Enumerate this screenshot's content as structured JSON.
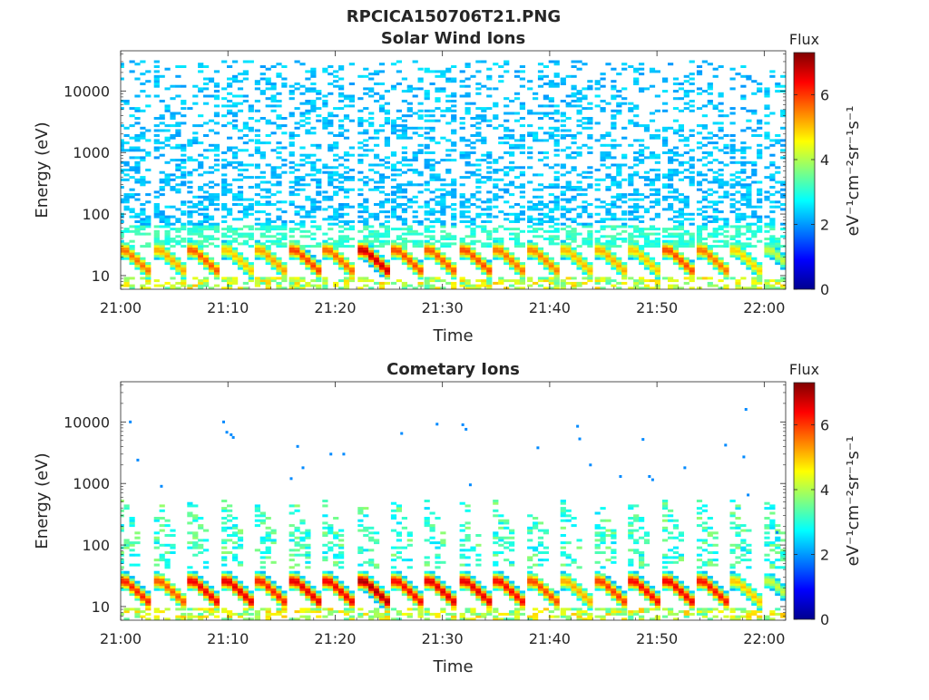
{
  "chart_data": {
    "type": "heatmap",
    "figure_title": "RPCICA150706T21.PNG",
    "colormap": [
      "#00008f",
      "#0000ff",
      "#0080ff",
      "#00ffff",
      "#80ff80",
      "#ffff00",
      "#ff8000",
      "#ff0000",
      "#800000"
    ],
    "panels": [
      {
        "title": "Solar Wind Ions",
        "xlabel": "Time",
        "ylabel": "Energy (eV)",
        "yscale": "log",
        "ylim": [
          6,
          45000
        ],
        "xlim": [
          0,
          62
        ],
        "xticks": [
          0,
          10,
          20,
          30,
          40,
          50,
          60
        ],
        "xtick_labels": [
          "21:00",
          "21:10",
          "21:20",
          "21:30",
          "21:40",
          "21:50",
          "22:00"
        ],
        "yticks": [
          10,
          100,
          1000,
          10000
        ],
        "ytick_labels": [
          "10",
          "100",
          "1000",
          "10000"
        ],
        "colorbar_title": "Flux",
        "colorbar_label": "eV⁻¹cm⁻²sr⁻¹s⁻¹",
        "clim": [
          0,
          7.3
        ],
        "colorbar_ticks": [
          0,
          2,
          4,
          6
        ],
        "colorbar_tick_labels": [
          "0",
          "2",
          "4",
          "6"
        ],
        "sweep_minutes": [
          0.2,
          3.5,
          6.6,
          9.8,
          12.9,
          16.1,
          19.2,
          22.5,
          25.6,
          28.7,
          32.0,
          35.1,
          38.3,
          41.4,
          44.6,
          47.7,
          50.9,
          54.1,
          57.2,
          60.4
        ],
        "sweep_peak_flux": [
          5.6,
          5.2,
          5.8,
          5.0,
          5.3,
          6.0,
          5.7,
          6.8,
          5.9,
          5.8,
          5.9,
          5.6,
          5.5,
          5.1,
          5.2,
          5.0,
          5.9,
          5.6,
          4.9,
          4.2
        ],
        "peak_energy_eV": 25,
        "high_energy_flux": 2.0,
        "high_energy_max_eV": 30000
      },
      {
        "title": "Cometary Ions",
        "xlabel": "Time",
        "ylabel": "Energy (eV)",
        "yscale": "log",
        "ylim": [
          6,
          45000
        ],
        "xlim": [
          0,
          62
        ],
        "xticks": [
          0,
          10,
          20,
          30,
          40,
          50,
          60
        ],
        "xtick_labels": [
          "21:00",
          "21:10",
          "21:20",
          "21:30",
          "21:40",
          "21:50",
          "22:00"
        ],
        "yticks": [
          10,
          100,
          1000,
          10000
        ],
        "ytick_labels": [
          "10",
          "100",
          "1000",
          "10000"
        ],
        "colorbar_title": "Flux",
        "colorbar_label": "eV⁻¹cm⁻²sr⁻¹s⁻¹",
        "clim": [
          0,
          7.3
        ],
        "colorbar_ticks": [
          0,
          2,
          4,
          6
        ],
        "colorbar_tick_labels": [
          "0",
          "2",
          "4",
          "6"
        ],
        "sweep_minutes": [
          0.2,
          3.5,
          6.6,
          9.8,
          12.9,
          16.1,
          19.2,
          22.5,
          25.6,
          28.7,
          32.0,
          35.1,
          38.3,
          41.4,
          44.6,
          47.7,
          50.9,
          54.1,
          57.2,
          60.4
        ],
        "sweep_peak_flux": [
          6.2,
          5.8,
          6.5,
          6.6,
          6.2,
          6.6,
          6.5,
          7.0,
          6.4,
          6.6,
          6.6,
          6.4,
          5.9,
          5.2,
          6.0,
          6.4,
          6.5,
          6.3,
          5.0,
          4.2
        ],
        "peak_energy_eV": 25,
        "tail_max_eV": 500,
        "sparse_points": [
          {
            "t": 0.9,
            "e": 10000
          },
          {
            "t": 1.6,
            "e": 2400
          },
          {
            "t": 3.8,
            "e": 900
          },
          {
            "t": 9.6,
            "e": 10000
          },
          {
            "t": 9.9,
            "e": 6800
          },
          {
            "t": 10.5,
            "e": 5600
          },
          {
            "t": 10.3,
            "e": 6200
          },
          {
            "t": 16.5,
            "e": 4000
          },
          {
            "t": 15.9,
            "e": 1200
          },
          {
            "t": 17.0,
            "e": 1800
          },
          {
            "t": 19.6,
            "e": 3000
          },
          {
            "t": 20.8,
            "e": 3000
          },
          {
            "t": 26.2,
            "e": 6500
          },
          {
            "t": 29.5,
            "e": 9200
          },
          {
            "t": 31.9,
            "e": 9000
          },
          {
            "t": 32.2,
            "e": 7600
          },
          {
            "t": 32.6,
            "e": 950
          },
          {
            "t": 38.9,
            "e": 3800
          },
          {
            "t": 42.6,
            "e": 8500
          },
          {
            "t": 42.8,
            "e": 5300
          },
          {
            "t": 43.8,
            "e": 2000
          },
          {
            "t": 46.6,
            "e": 1300
          },
          {
            "t": 48.7,
            "e": 5200
          },
          {
            "t": 49.3,
            "e": 1300
          },
          {
            "t": 49.6,
            "e": 1150
          },
          {
            "t": 52.6,
            "e": 1800
          },
          {
            "t": 56.4,
            "e": 4200
          },
          {
            "t": 58.1,
            "e": 2700
          },
          {
            "t": 58.3,
            "e": 16000
          },
          {
            "t": 58.5,
            "e": 650
          },
          {
            "t": 61.2,
            "e": 160
          }
        ]
      }
    ]
  }
}
